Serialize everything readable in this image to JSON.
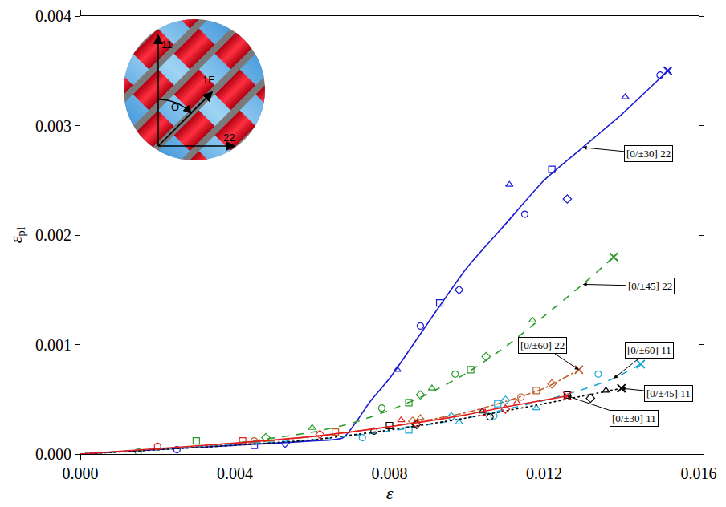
{
  "chart_data": {
    "type": "scatter",
    "x_label": "ε",
    "y_label": {
      "symbol": "ε",
      "subscript": "pl"
    },
    "xlim": [
      0,
      0.016
    ],
    "xticks": [
      {
        "value": 0,
        "label": "0.000"
      },
      {
        "value": 0.004,
        "label": "0.004"
      },
      {
        "value": 0.008,
        "label": "0.008"
      },
      {
        "value": 0.012,
        "label": "0.012"
      },
      {
        "value": 0.016,
        "label": "0.016"
      }
    ],
    "ylim": [
      0,
      0.004
    ],
    "yticks": [
      {
        "value": 0,
        "label": "0.000"
      },
      {
        "value": 0.001,
        "label": "0.001"
      },
      {
        "value": 0.002,
        "label": "0.002"
      },
      {
        "value": 0.003,
        "label": "0.003"
      },
      {
        "value": 0.004,
        "label": "0.004"
      }
    ],
    "grid": false,
    "inset_labels": {
      "axis_1": "11",
      "axis_2": "22",
      "fiber": "1F",
      "angle": "Θ"
    },
    "series": [
      {
        "name": "[0/±30] 22",
        "color": "#1a1ad6",
        "line_style": "solid",
        "x": [
          0.0025,
          0.0045,
          0.0053,
          0.0082,
          0.0088,
          0.0093,
          0.0098,
          0.0111,
          0.0115,
          0.0122,
          0.0126,
          0.0141,
          0.015
        ],
        "values": [
          4e-05,
          8e-05,
          0.0001,
          0.00077,
          0.00117,
          0.00138,
          0.0015,
          0.00246,
          0.00219,
          0.0026,
          0.00233,
          0.00326,
          0.00346
        ],
        "fit_x": [
          0,
          0.002,
          0.004,
          0.006,
          0.0068,
          0.0075,
          0.008,
          0.009,
          0.01,
          0.011,
          0.012,
          0.013,
          0.014,
          0.0152
        ],
        "fit_values": [
          0,
          4e-05,
          8e-05,
          0.00012,
          0.00015,
          0.00048,
          0.00069,
          0.0012,
          0.0017,
          0.0021,
          0.0025,
          0.0028,
          0.0031,
          0.0035
        ],
        "failure": {
          "x": 0.0152,
          "y": 0.0035
        }
      },
      {
        "name": "[0/±45] 22",
        "color": "#2a9a2a",
        "line_style": "dash",
        "x": [
          0.0015,
          0.003,
          0.0048,
          0.006,
          0.0078,
          0.0085,
          0.0088,
          0.0091,
          0.0097,
          0.0101,
          0.0105,
          0.0117
        ],
        "values": [
          2e-05,
          0.00012,
          0.00015,
          0.00024,
          0.00042,
          0.00047,
          0.00054,
          0.0006,
          0.00073,
          0.00077,
          0.00089,
          0.00122
        ],
        "fit_x": [
          0,
          0.002,
          0.004,
          0.006,
          0.007,
          0.008,
          0.009,
          0.01,
          0.011,
          0.012,
          0.013,
          0.0138
        ],
        "fit_values": [
          0,
          4e-05,
          0.0001,
          0.0002,
          0.00028,
          0.0004,
          0.00055,
          0.00074,
          0.00098,
          0.00126,
          0.00155,
          0.0018
        ],
        "failure": {
          "x": 0.0138,
          "y": 0.0018
        }
      },
      {
        "name": "[0/±60] 22",
        "color": "#c0602a",
        "line_style": "dashdot",
        "x": [
          0.0045,
          0.0066,
          0.0086,
          0.0088,
          0.0114,
          0.0118,
          0.0122
        ],
        "values": [
          0.00012,
          0.0002,
          0.0003,
          0.00033,
          0.00052,
          0.00058,
          0.00064
        ],
        "fit_x": [
          0,
          0.004,
          0.006,
          0.008,
          0.01,
          0.011,
          0.012,
          0.0129
        ],
        "fit_values": [
          0,
          9e-05,
          0.00016,
          0.00025,
          0.00038,
          0.00048,
          0.0006,
          0.00077
        ],
        "failure": {
          "x": 0.0129,
          "y": 0.00077
        }
      },
      {
        "name": "[0/±60] 11",
        "color": "#1fa8d8",
        "line_style": "dash",
        "x": [
          0.0073,
          0.0085,
          0.0096,
          0.0098,
          0.0107,
          0.0108,
          0.011,
          0.0118,
          0.0134
        ],
        "values": [
          0.00015,
          0.00022,
          0.00034,
          0.00029,
          0.00035,
          0.00046,
          0.00049,
          0.00042,
          0.00073
        ],
        "fit_x": [
          0,
          0.004,
          0.006,
          0.008,
          0.01,
          0.012,
          0.013,
          0.0138,
          0.0145
        ],
        "fit_values": [
          0,
          9e-05,
          0.00013,
          0.00021,
          0.00033,
          0.00049,
          0.00059,
          0.00069,
          0.00082
        ],
        "failure": {
          "x": 0.0145,
          "y": 0.00082
        }
      },
      {
        "name": "[0/±45] 11",
        "color": "#000000",
        "line_style": "dot",
        "x": [
          0.0076,
          0.008,
          0.0087,
          0.0104,
          0.0106,
          0.0126,
          0.0132,
          0.0136
        ],
        "values": [
          0.00021,
          0.00026,
          0.00027,
          0.00039,
          0.00034,
          0.00054,
          0.00051,
          0.00058
        ],
        "fit_x": [
          0,
          0.004,
          0.006,
          0.008,
          0.01,
          0.012,
          0.013,
          0.014
        ],
        "fit_values": [
          0,
          8e-05,
          0.00013,
          0.00022,
          0.00033,
          0.00046,
          0.00053,
          0.0006
        ],
        "failure": {
          "x": 0.014,
          "y": 0.0006
        }
      },
      {
        "name": "[0/±30] 11",
        "color": "#e02020",
        "line_style": "solid",
        "x": [
          0.002,
          0.0042,
          0.0062,
          0.0083,
          0.0087,
          0.0104,
          0.011,
          0.0113
        ],
        "values": [
          7e-05,
          0.00012,
          0.00018,
          0.00031,
          0.00028,
          0.00038,
          0.00041,
          0.00047
        ],
        "fit_x": [
          0,
          0.004,
          0.006,
          0.008,
          0.01,
          0.011,
          0.0126
        ],
        "fit_values": [
          0,
          0.0001,
          0.00016,
          0.00025,
          0.00036,
          0.00043,
          0.00053
        ],
        "failure": {
          "x": 0.0126,
          "y": 0.00053
        }
      }
    ]
  }
}
